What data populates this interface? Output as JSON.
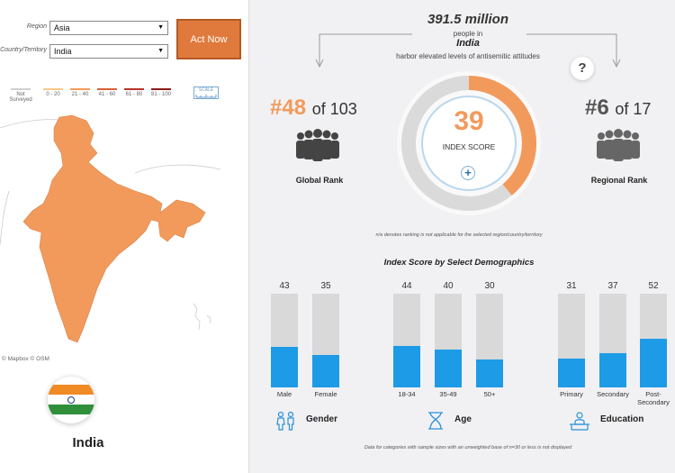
{
  "filters": {
    "region_label": "Region",
    "region_value": "Asia",
    "country_label": "Country/Territory",
    "country_value": "India",
    "act_now": "Act Now"
  },
  "map": {
    "legend": [
      {
        "label": "Not Surveyed",
        "color": "#cfcfcf"
      },
      {
        "label": "0 - 20",
        "color": "#f7c98a"
      },
      {
        "label": "21 - 40",
        "color": "#f39b5c"
      },
      {
        "label": "41 - 60",
        "color": "#d9603a"
      },
      {
        "label": "61 - 80",
        "color": "#b8322a"
      },
      {
        "label": "81 - 100",
        "color": "#8a1c1c"
      }
    ],
    "scale_label": "SCALE",
    "attribution_mapbox": "© Mapbox",
    "attribution_osm": "© OSM",
    "country_color": "#f29a5c",
    "country_name": "India",
    "flag_icon": "india-flag-icon"
  },
  "headline": {
    "count": "391.5 million",
    "line1": "people in",
    "country": "India",
    "line2": "harbor elevated levels of antisemitic attitudes"
  },
  "global_rank": {
    "rank": "#48",
    "of": "of 103",
    "label": "Global Rank",
    "color": "#f29a5c"
  },
  "regional_rank": {
    "rank": "#6",
    "of": "of 17",
    "label": "Regional Rank",
    "color": "#555555"
  },
  "index": {
    "score": "39",
    "label": "INDEX SCORE",
    "value": 39,
    "accent": "#f29a5c"
  },
  "help_icon": "?",
  "na_note": "n/a denotes ranking is not applicable for the selected region/country/territory",
  "demographics": {
    "title": "Index Score by Select Demographics",
    "bar_color": "#1e9be6",
    "groups": [
      {
        "name": "Gender",
        "icon": "gender-icon",
        "items": [
          {
            "label": "Male",
            "value": 43
          },
          {
            "label": "Female",
            "value": 35
          }
        ]
      },
      {
        "name": "Age",
        "icon": "hourglass-icon",
        "items": [
          {
            "label": "18-34",
            "value": 44
          },
          {
            "label": "35-49",
            "value": 40
          },
          {
            "label": "50+",
            "value": 30
          }
        ]
      },
      {
        "name": "Education",
        "icon": "education-icon",
        "items": [
          {
            "label": "Primary",
            "value": 31
          },
          {
            "label": "Secondary",
            "value": 37
          },
          {
            "label": "Post-Secondary",
            "value": 52
          }
        ]
      }
    ],
    "footnote": "Data for categories with sample sizes with an unweighted base of n=30 or less is not displayed"
  }
}
